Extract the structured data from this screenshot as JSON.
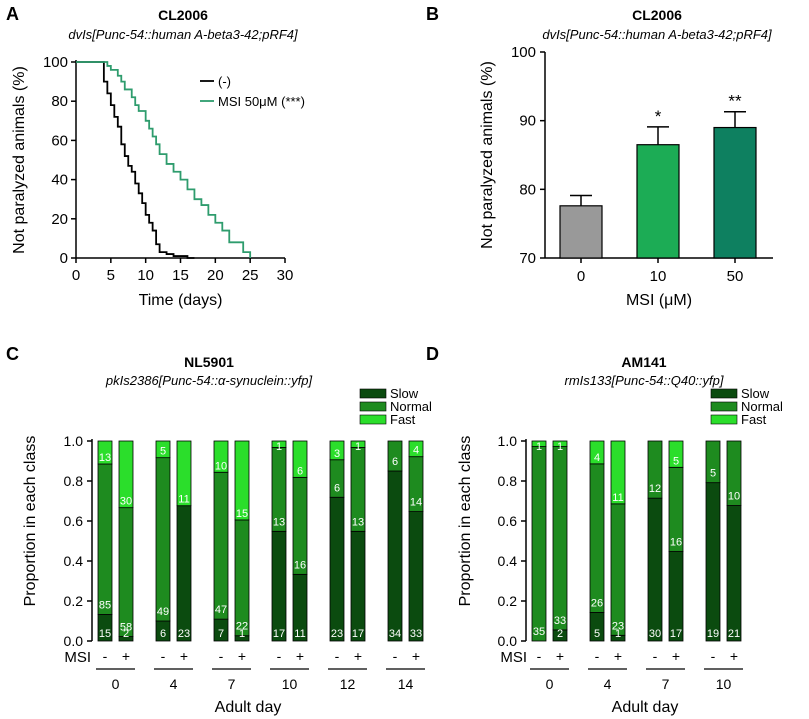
{
  "colors": {
    "slow": "#0b4b0f",
    "normal": "#1e8b1f",
    "fast": "#2bde2b",
    "control_line": "#000000",
    "msi_line": "#2e9c6d",
    "bar_0": "#999999",
    "bar_10": "#1cac55",
    "bar_50": "#0e8060"
  },
  "panels": {
    "A": {
      "letter": "A",
      "title": "CL2006",
      "subtitle": "dvIs[Punc-54::human A-beta3-42;pRF4]"
    },
    "B": {
      "letter": "B",
      "title": "CL2006",
      "subtitle": "dvIs[Punc-54::human A-beta3-42;pRF4]"
    },
    "C": {
      "letter": "C",
      "title": "NL5901",
      "subtitle": "pkIs2386[Punc-54::α-synuclein::yfp]"
    },
    "D": {
      "letter": "D",
      "title": "AM141",
      "subtitle": "rmIs133[Punc-54::Q40::yfp]"
    }
  },
  "chart_data": [
    {
      "id": "A",
      "type": "line",
      "title": "CL2006",
      "xlabel": "Time (days)",
      "ylabel": "Not paralyzed animals (%)",
      "xlim": [
        0,
        30
      ],
      "ylim": [
        0,
        100
      ],
      "xticks": [
        "0",
        "5",
        "10",
        "15",
        "20",
        "25",
        "30"
      ],
      "yticks": [
        "0",
        "20",
        "40",
        "60",
        "80",
        "100"
      ],
      "legend": [
        "(-)",
        "MSI 50μM (***)"
      ],
      "series": [
        {
          "name": "(-)",
          "x": [
            0,
            4,
            4.5,
            5,
            5.5,
            6,
            6.5,
            7,
            7.5,
            8,
            8.5,
            9,
            9.5,
            10,
            10.5,
            11,
            11.5,
            12,
            13,
            14,
            16,
            17
          ],
          "y": [
            100,
            90,
            84,
            78,
            72,
            67,
            58,
            52,
            47,
            44,
            38,
            33,
            28,
            22,
            18,
            14,
            7,
            3,
            2,
            1,
            0,
            0
          ]
        },
        {
          "name": "MSI 50μM (***)",
          "x": [
            0,
            4,
            4.5,
            5,
            6,
            6.5,
            7,
            8,
            8.5,
            9,
            10,
            10.5,
            11,
            11.5,
            12,
            13,
            14,
            15,
            16,
            17,
            18,
            19,
            20,
            21,
            22,
            24,
            25
          ],
          "y": [
            100,
            100,
            98,
            96,
            93,
            90,
            86,
            82,
            78,
            75,
            70,
            66,
            62,
            58,
            53,
            48,
            44,
            40,
            35,
            30,
            27,
            22,
            18,
            14,
            8,
            3,
            0
          ]
        }
      ]
    },
    {
      "id": "B",
      "type": "bar",
      "title": "CL2006",
      "xlabel": "MSI (μM)",
      "ylabel": "Not paralyzed animals (%)",
      "categories": [
        "0",
        "10",
        "50"
      ],
      "values": [
        77.6,
        86.5,
        89.0
      ],
      "errors": [
        1.5,
        2.6,
        2.3
      ],
      "significance": [
        "",
        "*",
        "**"
      ],
      "ylim": [
        70,
        100
      ],
      "yticks": [
        "70",
        "80",
        "90",
        "100"
      ]
    },
    {
      "id": "C",
      "type": "bar",
      "stacked": true,
      "title": "NL5901",
      "xlabel": "Adult day",
      "ylabel": "Proportion in each class",
      "ylim": [
        0,
        1.0
      ],
      "yticks": [
        "0.0",
        "0.2",
        "0.4",
        "0.6",
        "0.8",
        "1.0"
      ],
      "legend": [
        "Slow",
        "Normal",
        "Fast"
      ],
      "msi_label": "MSI",
      "categories": [
        "0",
        "4",
        "7",
        "10",
        "12",
        "14"
      ],
      "bars": [
        {
          "day": "0",
          "msi": "-",
          "slow": 15,
          "normal": 85,
          "fast": 13
        },
        {
          "day": "0",
          "msi": "+",
          "slow": 2,
          "normal": 58,
          "fast": 30
        },
        {
          "day": "4",
          "msi": "-",
          "slow": 6,
          "normal": 49,
          "fast": 5
        },
        {
          "day": "4",
          "msi": "+",
          "slow": 23,
          "normal": 0,
          "fast": 11
        },
        {
          "day": "7",
          "msi": "-",
          "slow": 7,
          "normal": 47,
          "fast": 10
        },
        {
          "day": "7",
          "msi": "+",
          "slow": 1,
          "normal": 22,
          "fast": 15
        },
        {
          "day": "10",
          "msi": "-",
          "slow": 17,
          "normal": 13,
          "fast": 1
        },
        {
          "day": "10",
          "msi": "+",
          "slow": 11,
          "normal": 16,
          "fast": 6
        },
        {
          "day": "12",
          "msi": "-",
          "slow": 23,
          "normal": 6,
          "fast": 3
        },
        {
          "day": "12",
          "msi": "+",
          "slow": 17,
          "normal": 13,
          "fast": 1
        },
        {
          "day": "14",
          "msi": "-",
          "slow": 34,
          "normal": 6,
          "fast": 0
        },
        {
          "day": "14",
          "msi": "+",
          "slow": 33,
          "normal": 14,
          "fast": 4
        }
      ]
    },
    {
      "id": "D",
      "type": "bar",
      "stacked": true,
      "title": "AM141",
      "xlabel": "Adult day",
      "ylabel": "Proportion in each class",
      "ylim": [
        0,
        1.0
      ],
      "yticks": [
        "0.0",
        "0.2",
        "0.4",
        "0.6",
        "0.8",
        "1.0"
      ],
      "legend": [
        "Slow",
        "Normal",
        "Fast"
      ],
      "msi_label": "MSI",
      "categories": [
        "0",
        "4",
        "7",
        "10"
      ],
      "bars": [
        {
          "day": "0",
          "msi": "-",
          "slow": 0,
          "normal": 35,
          "fast": 1
        },
        {
          "day": "0",
          "msi": "+",
          "slow": 2,
          "normal": 33,
          "fast": 1
        },
        {
          "day": "4",
          "msi": "-",
          "slow": 5,
          "normal": 26,
          "fast": 4
        },
        {
          "day": "4",
          "msi": "+",
          "slow": 1,
          "normal": 23,
          "fast": 11
        },
        {
          "day": "7",
          "msi": "-",
          "slow": 30,
          "normal": 12,
          "fast": 0
        },
        {
          "day": "7",
          "msi": "+",
          "slow": 17,
          "normal": 16,
          "fast": 5
        },
        {
          "day": "10",
          "msi": "-",
          "slow": 19,
          "normal": 5,
          "fast": 0
        },
        {
          "day": "10",
          "msi": "+",
          "slow": 21,
          "normal": 10,
          "fast": 0
        }
      ]
    }
  ]
}
